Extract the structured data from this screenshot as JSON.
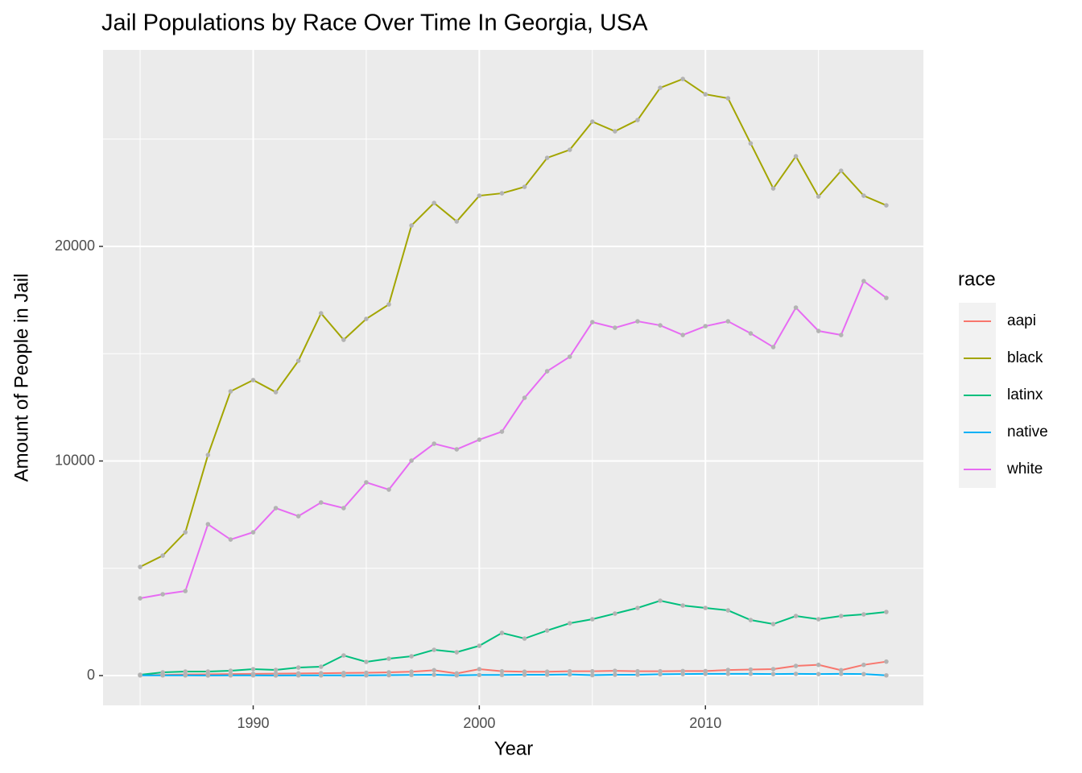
{
  "chart_data": {
    "type": "line",
    "title": "Jail Populations by Race Over Time In Georgia, USA",
    "x_label": "Year",
    "y_label": "Amount of People in Jail",
    "legend_title": "race",
    "legend_position": "right",
    "grid": true,
    "point_color": "#b3b3b3",
    "x": [
      1985,
      1986,
      1987,
      1988,
      1989,
      1990,
      1991,
      1992,
      1993,
      1994,
      1995,
      1996,
      1997,
      1998,
      1999,
      2000,
      2001,
      2002,
      2003,
      2004,
      2005,
      2006,
      2007,
      2008,
      2009,
      2010,
      2011,
      2012,
      2013,
      2014,
      2015,
      2016,
      2017,
      2018
    ],
    "xlim": [
      1983.36,
      2019.64
    ],
    "xticks": [
      1990,
      2000,
      2010
    ],
    "ylim": [
      -1388,
      29156
    ],
    "yticks": [
      0,
      10000,
      20000
    ],
    "series": [
      {
        "name": "aapi",
        "color": "#F8766D",
        "values": [
          20,
          30,
          50,
          60,
          70,
          80,
          90,
          100,
          110,
          120,
          130,
          150,
          180,
          250,
          100,
          300,
          200,
          180,
          180,
          200,
          200,
          220,
          200,
          200,
          210,
          210,
          260,
          280,
          300,
          450,
          500,
          250,
          500,
          650
        ]
      },
      {
        "name": "black",
        "color": "#A3A500",
        "values": [
          5065,
          5590,
          6679,
          10280,
          13245,
          13770,
          13207,
          14670,
          16884,
          15646,
          16621,
          17297,
          20974,
          22024,
          21161,
          22362,
          22474,
          22775,
          24125,
          24501,
          25814,
          25364,
          25889,
          27390,
          27802,
          27089,
          26902,
          24800,
          22700,
          24200,
          22324,
          23525,
          22362,
          21912
        ]
      },
      {
        "name": "latinx",
        "color": "#00BF7D",
        "values": [
          38,
          150,
          188,
          188,
          225,
          300,
          263,
          375,
          413,
          938,
          638,
          788,
          900,
          1200,
          1088,
          1388,
          1988,
          1726,
          2101,
          2439,
          2627,
          2889,
          3152,
          3490,
          3265,
          3152,
          3039,
          2589,
          2401,
          2777,
          2627,
          2777,
          2852,
          2964
        ]
      },
      {
        "name": "native",
        "color": "#00B0F6",
        "values": [
          10,
          10,
          10,
          5,
          10,
          10,
          5,
          10,
          10,
          10,
          10,
          20,
          30,
          40,
          10,
          30,
          30,
          40,
          40,
          50,
          20,
          40,
          40,
          60,
          70,
          80,
          80,
          80,
          70,
          80,
          70,
          80,
          70,
          10
        ]
      },
      {
        "name": "white",
        "color": "#E76BF3",
        "values": [
          3602,
          3790,
          3940,
          7054,
          6341,
          6679,
          7804,
          7429,
          8067,
          7804,
          9005,
          8667,
          10018,
          10806,
          10543,
          10993,
          11369,
          12944,
          14183,
          14858,
          16471,
          16209,
          16509,
          16321,
          15871,
          16284,
          16509,
          15946,
          15308,
          17147,
          16059,
          15871,
          18385,
          17597
        ]
      }
    ]
  }
}
